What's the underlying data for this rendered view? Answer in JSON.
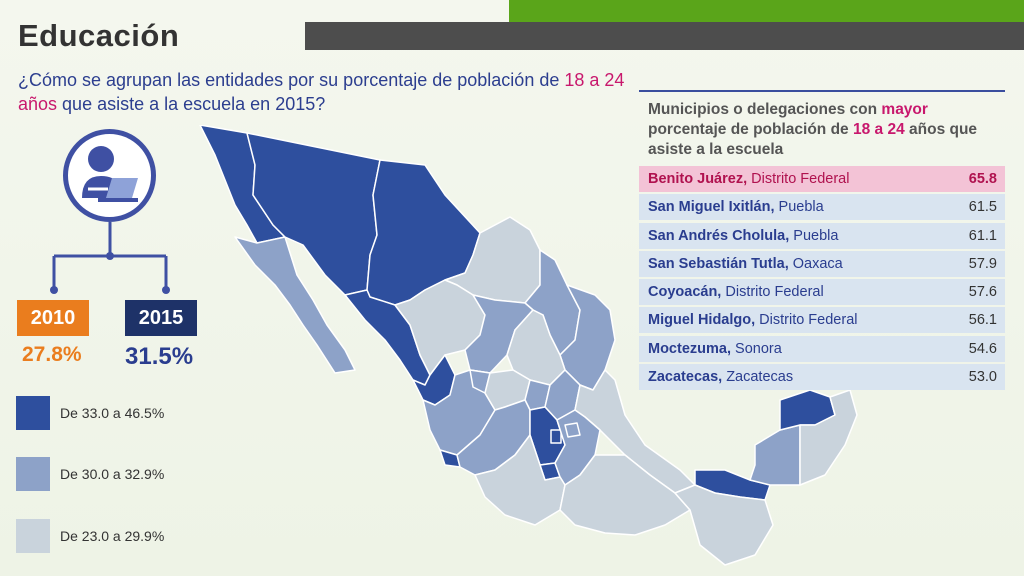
{
  "header": {
    "title": "Educación",
    "question_pre": "¿Cómo se agrupan las entidades por su porcentaje de población de ",
    "question_hl": "18 a 24 años",
    "question_post": " que asiste a la escuela en 2015?"
  },
  "years": [
    {
      "year": "2010",
      "value": "27.8%",
      "color": "#ea7d1e"
    },
    {
      "year": "2015",
      "value": "31.5%",
      "color": "#1e3268"
    }
  ],
  "legend": [
    {
      "label": "De 33.0 a 46.5%",
      "color": "#2e4f9e"
    },
    {
      "label": "De 30.0 a 32.9%",
      "color": "#8da2c8"
    },
    {
      "label": "De 23.0 a 29.9%",
      "color": "#c9d3dc"
    }
  ],
  "table": {
    "heading_a": "Municipios o delegaciones con ",
    "heading_hl1": "mayor",
    "heading_b": " porcentaje de población de ",
    "heading_hl2": "18 a 24",
    "heading_c": " años que asiste a la escuela",
    "rows": [
      {
        "name": "Benito Juárez,",
        "state": " Distrito Federal",
        "value": "65.8"
      },
      {
        "name": "San Miguel Ixitlán,",
        "state": " Puebla",
        "value": "61.5"
      },
      {
        "name": "San Andrés Cholula,",
        "state": " Puebla",
        "value": "61.1"
      },
      {
        "name": "San Sebastián Tutla,",
        "state": " Oaxaca",
        "value": "57.9"
      },
      {
        "name": "Coyoacán,",
        "state": " Distrito Federal",
        "value": "57.6"
      },
      {
        "name": "Miguel Hidalgo,",
        "state": " Distrito Federal",
        "value": "56.1"
      },
      {
        "name": "Moctezuma,",
        "state": " Sonora",
        "value": "54.6"
      },
      {
        "name": "Zacatecas,",
        "state": " Zacatecas",
        "value": "53.0"
      }
    ]
  },
  "icons": {
    "person": "person-at-laptop-icon"
  }
}
